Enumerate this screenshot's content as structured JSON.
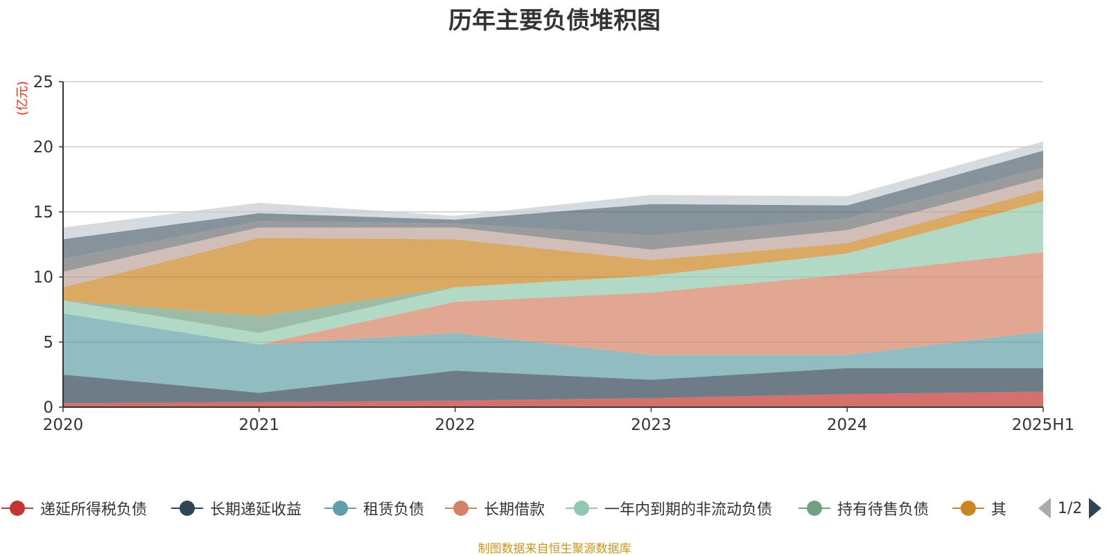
{
  "chart_data": {
    "type": "area",
    "stacked": true,
    "title": "历年主要负债堆积图",
    "unit_label": "(亿元)",
    "categories": [
      "2020",
      "2021",
      "2022",
      "2023",
      "2024",
      "2025H1"
    ],
    "y_ticks": [
      "0",
      "5",
      "10",
      "15",
      "20",
      "25"
    ],
    "ylim": [
      0,
      25
    ],
    "grid": true,
    "series": [
      {
        "name": "递延所得税负债",
        "color": "#c23531",
        "values": [
          0.3,
          0.4,
          0.5,
          0.7,
          1.0,
          1.2
        ]
      },
      {
        "name": "长期递延收益",
        "color": "#2f4554",
        "values": [
          2.2,
          0.7,
          2.3,
          1.4,
          2.0,
          1.8
        ]
      },
      {
        "name": "租赁负债",
        "color": "#61a0a8",
        "values": [
          4.7,
          3.7,
          2.9,
          1.9,
          1.0,
          2.8
        ]
      },
      {
        "name": "长期借款",
        "color": "#d48265",
        "values": [
          0,
          0,
          2.4,
          4.8,
          6.2,
          6.1
        ]
      },
      {
        "name": "一年内到期的非流动负债",
        "color": "#91c7ae",
        "values": [
          1.0,
          0.9,
          1.1,
          1.3,
          1.6,
          3.9
        ]
      },
      {
        "name": "持有待售负债",
        "color": "#749f83",
        "values": [
          0,
          1.3,
          0,
          0,
          0,
          0
        ]
      },
      {
        "name": "其他",
        "color": "#ca8622",
        "values": [
          1.0,
          6.0,
          3.7,
          1.2,
          0.8,
          0.9
        ]
      },
      {
        "name": "",
        "color": "#bda29a",
        "values": [
          1.2,
          0.8,
          0.9,
          0.8,
          1.0,
          0.9
        ]
      },
      {
        "name": "",
        "color": "#6e7074",
        "values": [
          1.0,
          0.5,
          0.3,
          1.1,
          0.9,
          0.8
        ]
      },
      {
        "name": "",
        "color": "#546570",
        "values": [
          1.5,
          0.6,
          0.3,
          2.4,
          1.0,
          1.3
        ]
      },
      {
        "name": "",
        "color": "#c4ccd3",
        "values": [
          0.9,
          0.8,
          0.3,
          0.7,
          0.7,
          0.7
        ]
      }
    ],
    "legend": {
      "position": "bottom",
      "visible_labels": [
        "递延所得税负债",
        "长期递延收益",
        "租赁负债",
        "长期借款",
        "一年内到期的非流动负债",
        "持有待售负债",
        "其"
      ],
      "page": "1/2"
    },
    "source_note": "制图数据来自恒生聚源数据库"
  }
}
